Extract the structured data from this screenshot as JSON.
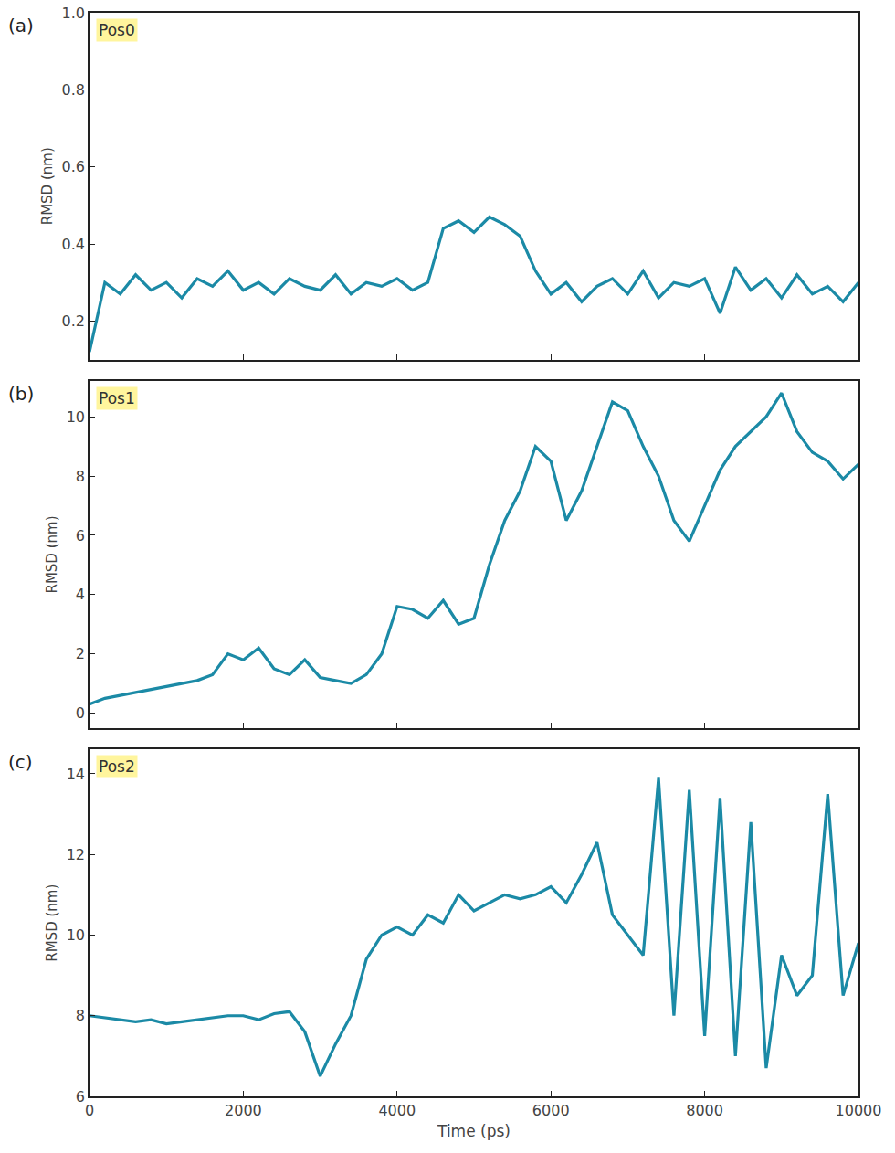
{
  "chart_data": [
    {
      "type": "line",
      "panel": "(a)",
      "label": "Pos0",
      "y_label": "RMSD (nm)",
      "x": [
        0,
        200,
        400,
        600,
        800,
        1000,
        1200,
        1400,
        1600,
        1800,
        2000,
        2200,
        2400,
        2600,
        2800,
        3000,
        3200,
        3400,
        3600,
        3800,
        4000,
        4200,
        4400,
        4600,
        4800,
        5000,
        5200,
        5400,
        5600,
        5800,
        6000,
        6200,
        6400,
        6600,
        6800,
        7000,
        7200,
        7400,
        7600,
        7800,
        8000,
        8200,
        8400,
        8600,
        8800,
        9000,
        9200,
        9400,
        9600,
        9800,
        10000
      ],
      "values": [
        0.12,
        0.3,
        0.27,
        0.32,
        0.28,
        0.3,
        0.26,
        0.31,
        0.29,
        0.33,
        0.28,
        0.3,
        0.27,
        0.31,
        0.29,
        0.28,
        0.32,
        0.27,
        0.3,
        0.29,
        0.31,
        0.28,
        0.3,
        0.44,
        0.46,
        0.43,
        0.47,
        0.45,
        0.42,
        0.33,
        0.27,
        0.3,
        0.25,
        0.29,
        0.31,
        0.27,
        0.33,
        0.26,
        0.3,
        0.29,
        0.31,
        0.22,
        0.34,
        0.28,
        0.31,
        0.26,
        0.32,
        0.27,
        0.29,
        0.25,
        0.3
      ],
      "color": "#1b8aa6",
      "xlim": [
        0,
        10000
      ],
      "xticks": [
        0,
        2000,
        4000,
        6000,
        8000,
        10000
      ],
      "ylim": [
        0.1,
        1.0
      ],
      "yticks": [
        0.2,
        0.4,
        0.6,
        0.8,
        {
          "value": 1.0,
          "label": "1.0"
        }
      ],
      "grid": false,
      "tick_labels": "y"
    },
    {
      "type": "line",
      "panel": "(b)",
      "label": "Pos1",
      "y_label": "RMSD (nm)",
      "x": [
        0,
        200,
        400,
        600,
        800,
        1000,
        1200,
        1400,
        1600,
        1800,
        2000,
        2200,
        2400,
        2600,
        2800,
        3000,
        3200,
        3400,
        3600,
        3800,
        4000,
        4200,
        4400,
        4600,
        4800,
        5000,
        5200,
        5400,
        5600,
        5800,
        6000,
        6200,
        6400,
        6600,
        6800,
        7000,
        7200,
        7400,
        7600,
        7800,
        8000,
        8200,
        8400,
        8600,
        8800,
        9000,
        9200,
        9400,
        9600,
        9800,
        10000
      ],
      "values": [
        0.3,
        0.5,
        0.6,
        0.7,
        0.8,
        0.9,
        1.0,
        1.1,
        1.3,
        2.0,
        1.8,
        2.2,
        1.5,
        1.3,
        1.8,
        1.2,
        1.1,
        1.0,
        1.3,
        2.0,
        3.6,
        3.5,
        3.2,
        3.8,
        3.0,
        3.2,
        5.0,
        6.5,
        7.5,
        9.0,
        8.5,
        6.5,
        7.5,
        9.0,
        10.5,
        10.2,
        9.0,
        8.0,
        6.5,
        5.8,
        7.0,
        8.2,
        9.0,
        9.5,
        10.0,
        10.8,
        9.5,
        8.8,
        8.5,
        7.9,
        8.4
      ],
      "color": "#1b8aa6",
      "xlim": [
        0,
        10000
      ],
      "xticks": [
        0,
        2000,
        4000,
        6000,
        8000,
        10000
      ],
      "ylim": [
        -0.5,
        11.2
      ],
      "yticks": [
        0,
        2,
        4,
        6,
        8,
        10
      ],
      "grid": false,
      "tick_labels": "y"
    },
    {
      "type": "line",
      "panel": "(c)",
      "label": "Pos2",
      "y_label": "RMSD (nm)",
      "x_label": "Time (ps)",
      "x": [
        0,
        200,
        400,
        600,
        800,
        1000,
        1200,
        1400,
        1600,
        1800,
        2000,
        2200,
        2400,
        2600,
        2800,
        3000,
        3200,
        3400,
        3600,
        3800,
        4000,
        4200,
        4400,
        4600,
        4800,
        5000,
        5200,
        5400,
        5600,
        5800,
        6000,
        6200,
        6400,
        6600,
        6800,
        7000,
        7200,
        7400,
        7600,
        7800,
        8000,
        8200,
        8400,
        8600,
        8800,
        9000,
        9200,
        9400,
        9600,
        9800,
        10000
      ],
      "values": [
        8.0,
        7.95,
        7.9,
        7.85,
        7.9,
        7.8,
        7.85,
        7.9,
        7.95,
        8.0,
        8.0,
        7.9,
        8.05,
        8.1,
        7.6,
        6.5,
        7.3,
        8.0,
        9.4,
        10.0,
        10.2,
        10.0,
        10.5,
        10.3,
        11.0,
        10.6,
        10.8,
        11.0,
        10.9,
        11.0,
        11.2,
        10.8,
        11.5,
        12.3,
        10.5,
        10.0,
        9.5,
        13.9,
        8.0,
        13.6,
        7.5,
        13.4,
        7.0,
        12.8,
        6.7,
        9.5,
        8.5,
        9.0,
        13.5,
        8.5,
        9.8
      ],
      "color": "#1b8aa6",
      "xlim": [
        0,
        10000
      ],
      "xticks": [
        0,
        2000,
        4000,
        6000,
        8000,
        10000
      ],
      "ylim": [
        6,
        14.6
      ],
      "yticks": [
        6,
        8,
        10,
        12,
        14
      ],
      "grid": false
    }
  ]
}
